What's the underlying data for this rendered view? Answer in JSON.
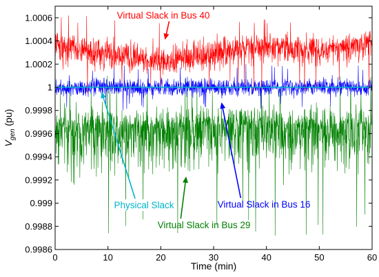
{
  "chart_data": {
    "type": "line",
    "xlabel": "Time (min)",
    "ylabel": {
      "main": "V",
      "sub": "gen",
      "unit": " (pu)"
    },
    "xlim": [
      0,
      60
    ],
    "ylim": [
      0.9986,
      1.0007
    ],
    "x_ticks": [
      0,
      10,
      20,
      30,
      40,
      50,
      60
    ],
    "x_tick_labels": [
      "0",
      "10",
      "20",
      "30",
      "40",
      "50",
      "60"
    ],
    "y_ticks": [
      0.9986,
      0.9988,
      0.999,
      0.9992,
      0.9994,
      0.9996,
      0.9998,
      1.0,
      1.0002,
      1.0004,
      1.0006
    ],
    "y_tick_labels": [
      "0.9986",
      "0.9988",
      "0.999",
      "0.9992",
      "0.9994",
      "0.9996",
      "0.9998",
      "1",
      "1.0002",
      "1.0004",
      "1.0006"
    ],
    "grid": false,
    "series": [
      {
        "name": "Virtual Slack in Bus 29",
        "color": "#008000",
        "noise": "high-frequency",
        "approx_min": 0.9987,
        "approx_max": 1.0001,
        "mean_profile": {
          "x": [
            0,
            5,
            10,
            15,
            20,
            25,
            30,
            35,
            40,
            45,
            50,
            55,
            60
          ],
          "y": [
            0.99965,
            0.99964,
            0.99966,
            0.99965,
            0.99963,
            0.99965,
            0.99966,
            0.99967,
            0.99966,
            0.99965,
            0.99966,
            0.99966,
            0.99965
          ]
        }
      },
      {
        "name": "Virtual Slack in Bus 16",
        "color": "#0000ff",
        "noise": "high-frequency",
        "approx_min": 0.9998,
        "approx_max": 1.0002,
        "mean_profile": {
          "x": [
            0,
            10,
            20,
            30,
            40,
            50,
            60
          ],
          "y": [
            1.0,
            1.0,
            1.0,
            1.0,
            1.0,
            1.0,
            1.0
          ]
        }
      },
      {
        "name": "Virtual Slack in Bus 40",
        "color": "#ff0000",
        "noise": "high-frequency",
        "approx_min": 0.99995,
        "approx_max": 1.00063,
        "mean_profile": {
          "x": [
            0,
            5,
            10,
            15,
            20,
            22,
            25,
            30,
            35,
            40,
            45,
            50,
            55,
            60
          ],
          "y": [
            1.00038,
            1.00032,
            1.00027,
            1.00026,
            1.00021,
            1.00022,
            1.00025,
            1.00029,
            1.00034,
            1.00036,
            1.00033,
            1.00032,
            1.00036,
            1.0004
          ]
        }
      },
      {
        "name": "Physical Slack",
        "color": "#00b4c8",
        "noise": "none",
        "x": [
          0,
          60
        ],
        "y": [
          1.0,
          1.0
        ]
      }
    ],
    "annotations": [
      {
        "text": "Virtual Slack in Bus 40",
        "color": "#ff0000",
        "arrow_to": [
          20.8,
          1.00041
        ]
      },
      {
        "text": "Virtual Slack in Bus 16",
        "color": "#0000ff",
        "arrow_to": [
          31.5,
          0.99987
        ]
      },
      {
        "text": "Physical Slack",
        "color": "#00b4c8",
        "arrow_to": [
          8.8,
          0.99996
        ]
      },
      {
        "text": "Virtual Slack in Bus 29",
        "color": "#008000",
        "arrow_to": [
          24.8,
          0.99923
        ]
      }
    ]
  }
}
